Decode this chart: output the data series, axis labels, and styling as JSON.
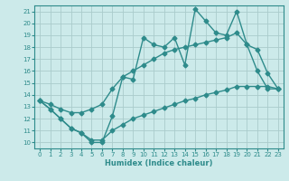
{
  "title": "",
  "xlabel": "Humidex (Indice chaleur)",
  "x": [
    0,
    1,
    2,
    3,
    4,
    5,
    6,
    7,
    8,
    9,
    10,
    11,
    12,
    13,
    14,
    15,
    16,
    17,
    18,
    19,
    20,
    21,
    22,
    23
  ],
  "line_jagged": [
    13.5,
    12.8,
    12.0,
    11.2,
    10.8,
    10.0,
    10.0,
    12.2,
    15.5,
    15.3,
    18.8,
    18.2,
    18.0,
    18.8,
    16.5,
    21.2,
    20.2,
    19.2,
    19.0,
    21.0,
    18.2,
    17.8,
    15.8,
    14.5
  ],
  "line_upper": [
    13.5,
    13.2,
    12.8,
    12.5,
    12.5,
    12.8,
    13.2,
    14.5,
    15.5,
    16.0,
    16.5,
    17.0,
    17.5,
    17.8,
    18.0,
    18.2,
    18.4,
    18.6,
    18.8,
    19.2,
    18.2,
    16.0,
    14.5,
    14.5
  ],
  "line_lower": [
    13.5,
    12.8,
    12.0,
    11.2,
    10.8,
    10.2,
    10.2,
    11.0,
    11.5,
    12.0,
    12.3,
    12.6,
    12.9,
    13.2,
    13.5,
    13.7,
    14.0,
    14.2,
    14.4,
    14.7,
    14.7,
    14.7,
    14.7,
    14.5
  ],
  "color": "#2e8b8b",
  "bg_color": "#cceaea",
  "grid_color": "#b8d8d8",
  "ylim": [
    9.5,
    21.5
  ],
  "xlim": [
    -0.5,
    23.5
  ],
  "yticks": [
    10,
    11,
    12,
    13,
    14,
    15,
    16,
    17,
    18,
    19,
    20,
    21
  ],
  "xticks": [
    0,
    1,
    2,
    3,
    4,
    5,
    6,
    7,
    8,
    9,
    10,
    11,
    12,
    13,
    14,
    15,
    16,
    17,
    18,
    19,
    20,
    21,
    22,
    23
  ],
  "marker": "D",
  "markersize": 2.5,
  "linewidth": 1.0
}
